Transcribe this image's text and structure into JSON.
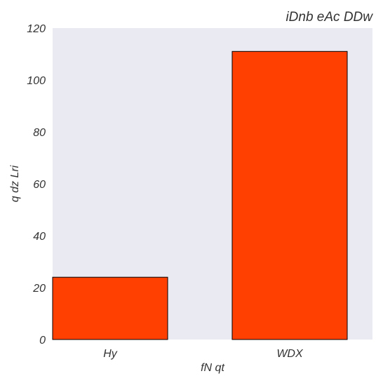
{
  "chart_data": {
    "type": "bar",
    "title": "iDnb eAc DDw",
    "xlabel": "fN qt",
    "ylabel": "q dz Lri",
    "categories": [
      "Hy",
      "WDX"
    ],
    "values": [
      24,
      111
    ],
    "ylim": [
      0,
      120
    ],
    "yticks": [
      0,
      20,
      40,
      60,
      80,
      100,
      120
    ],
    "grid": false,
    "legend": "none",
    "colors": {
      "bar": "#ff4000",
      "bar_edge": "#000000",
      "plot_background": "#eaeaf2",
      "text": "#333333"
    }
  }
}
